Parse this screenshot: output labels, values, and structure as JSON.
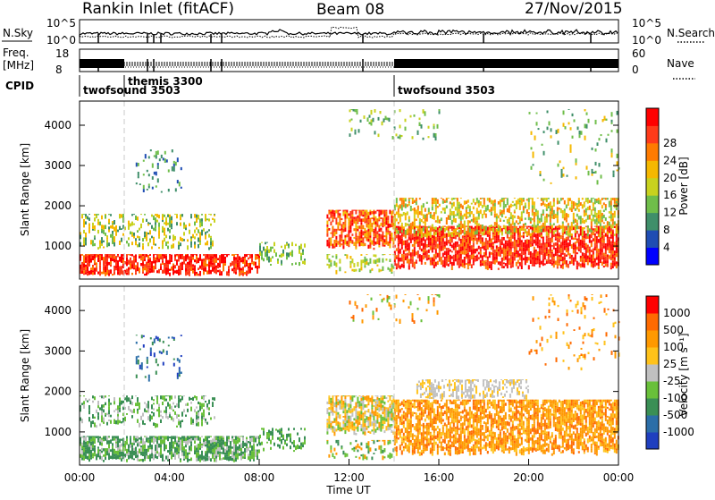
{
  "header": {
    "title": "Rankin Inlet (fitACF)",
    "beam": "Beam 08",
    "date": "27/Nov/2015"
  },
  "nsky_panel": {
    "label": "N.Sky",
    "ticks": [
      "10^5",
      "10^0"
    ],
    "right_label": "N.Search",
    "right_ticks": [
      "10^5",
      "10^0"
    ]
  },
  "freq_panel": {
    "label_line1": "Freq.",
    "label_line2": "[MHz]",
    "ticks": [
      "18",
      "8"
    ],
    "right_label": "Nave",
    "right_ticks": [
      "60",
      "0"
    ]
  },
  "cpid_panel": {
    "label": "CPID",
    "modes": [
      {
        "name": "twofsound 3503",
        "start_hour": 0
      },
      {
        "name": "themis 3300",
        "start_hour": 2
      },
      {
        "name": "twofsound 3503",
        "start_hour": 14
      }
    ]
  },
  "chart_data": [
    {
      "type": "heatmap",
      "title": "",
      "xlabel": "",
      "ylabel": "Slant Range [km]",
      "x_range_hours": [
        0,
        24
      ],
      "y_range_km": [
        180,
        4600
      ],
      "yticks": [
        "1000",
        "2000",
        "3000",
        "4000"
      ],
      "colorbar": {
        "label": "Power [dB]",
        "ticks": [
          "4",
          "8",
          "12",
          "16",
          "20",
          "24",
          "28"
        ],
        "colors": [
          "#0000ff",
          "#1f4db3",
          "#3f8f6a",
          "#6fbe4a",
          "#c8d21e",
          "#f5b800",
          "#ff7b00",
          "#ff3b1a",
          "#ff0000"
        ]
      },
      "mode_boundaries_hours": [
        2,
        14
      ]
    },
    {
      "type": "heatmap",
      "title": "",
      "xlabel": "Time UT",
      "ylabel": "Slant Range [km]",
      "x_range_hours": [
        0,
        24
      ],
      "y_range_km": [
        180,
        4600
      ],
      "yticks": [
        "1000",
        "2000",
        "3000",
        "4000"
      ],
      "xticks": [
        "00:00",
        "04:00",
        "08:00",
        "12:00",
        "16:00",
        "20:00",
        "00:00"
      ],
      "colorbar": {
        "label": "Velocity [m s⁻¹]",
        "ticks": [
          "1000",
          "500",
          "100",
          "25",
          "-25",
          "-100",
          "-500",
          "-1000"
        ],
        "colors": [
          "#1f3fbf",
          "#2b6ea8",
          "#3a8f55",
          "#69c03a",
          "#c0c0c0",
          "#ffc21a",
          "#ff9900",
          "#ff6a00",
          "#ff0000"
        ]
      },
      "mode_boundaries_hours": [
        2,
        14
      ]
    }
  ],
  "colors": {
    "frame": "#000000",
    "mode_dash": "#c8c8c8"
  }
}
